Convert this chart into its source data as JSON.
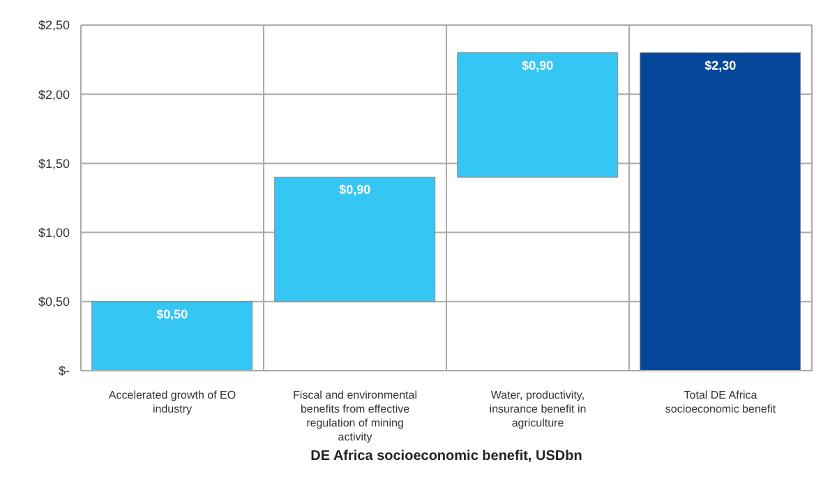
{
  "chart_data": {
    "type": "bar",
    "xlabel": "DE Africa socioeconomic benefit, USDbn",
    "categories": [
      "Accelerated growth of EO industry",
      "Fiscal and environmental benefits from effective regulation of mining activity",
      "Water, productivity, insurance benefit in agriculture",
      "Total DE Africa socioeconomic benefit"
    ],
    "values": [
      0.5,
      0.9,
      0.9,
      2.3
    ],
    "base": [
      0,
      0.5,
      1.4,
      0
    ],
    "colors": [
      "#36c6f4",
      "#36c6f4",
      "#36c6f4",
      "#05479a"
    ],
    "value_labels": [
      "$0,50",
      "$0,90",
      "$0,90",
      "$2,30"
    ],
    "ylim": [
      0,
      2.5
    ],
    "yticks": [
      {
        "value": 0,
        "label": "$-"
      },
      {
        "value": 0.5,
        "label": "$0,50"
      },
      {
        "value": 1,
        "label": "$1,00"
      },
      {
        "value": 1.5,
        "label": "$1,50"
      },
      {
        "value": 2,
        "label": "$2,00"
      },
      {
        "value": 2.5,
        "label": "$2,50"
      }
    ],
    "grid": true
  }
}
